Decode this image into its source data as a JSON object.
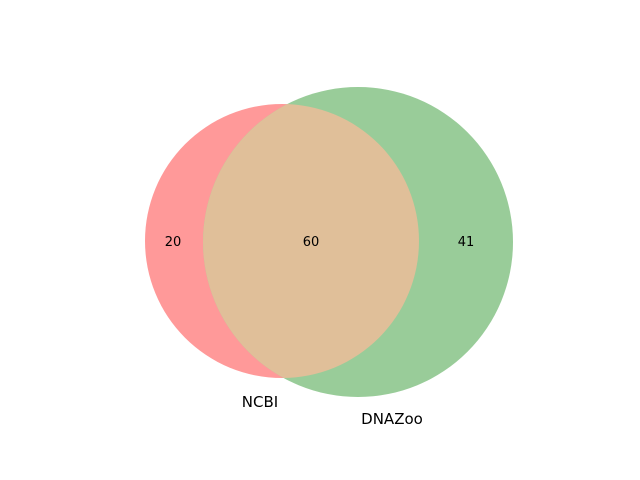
{
  "chart_data": {
    "type": "venn",
    "sets": [
      {
        "name": "NCBI",
        "only_count": "20",
        "color": "#ff9999"
      },
      {
        "name": "DNAZoo",
        "only_count": "41",
        "color": "#99cc99"
      }
    ],
    "intersection": {
      "count": "60",
      "color": "#e0bf99"
    }
  }
}
